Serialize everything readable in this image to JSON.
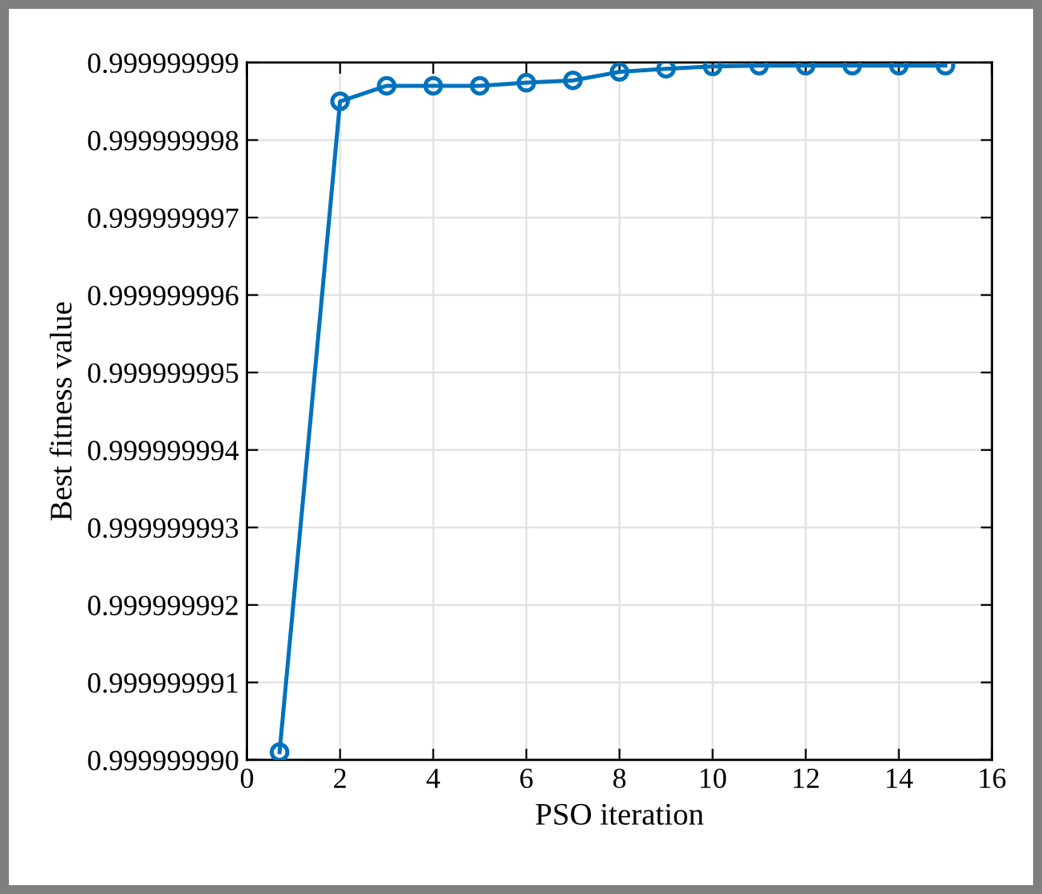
{
  "chart_data": {
    "type": "line",
    "xlabel": "PSO iteration",
    "ylabel": "Best fitness value",
    "x": [
      0.7,
      2,
      3,
      4,
      5,
      6,
      7,
      8,
      9,
      10,
      11,
      12,
      13,
      14,
      15
    ],
    "series": [
      {
        "color": "#0072bd",
        "values": [
          0.9999999901,
          0.9999999985,
          0.9999999987,
          0.9999999987,
          0.9999999987,
          0.99999999874,
          0.99999999877,
          0.99999999888,
          0.99999999892,
          0.99999999895,
          0.99999999896,
          0.99999999896,
          0.99999999896,
          0.99999999896,
          0.99999999896
        ]
      }
    ],
    "xlim": [
      0,
      16
    ],
    "xticks": [
      0,
      2,
      4,
      6,
      8,
      10,
      12,
      14,
      16
    ],
    "ylim": [
      0.99999999,
      0.999999999
    ],
    "yticks": [
      {
        "value": 0.99999999,
        "label": "0.999999990"
      },
      {
        "value": 0.999999991,
        "label": "0.999999991"
      },
      {
        "value": 0.999999992,
        "label": "0.999999992"
      },
      {
        "value": 0.999999993,
        "label": "0.999999993"
      },
      {
        "value": 0.999999994,
        "label": "0.999999994"
      },
      {
        "value": 0.999999995,
        "label": "0.999999995"
      },
      {
        "value": 0.999999996,
        "label": "0.999999996"
      },
      {
        "value": 0.999999997,
        "label": "0.999999997"
      },
      {
        "value": 0.999999998,
        "label": "0.999999998"
      },
      {
        "value": 0.999999999,
        "label": "0.999999999"
      }
    ],
    "grid": true,
    "marker": "circle",
    "line_style": "solid"
  }
}
